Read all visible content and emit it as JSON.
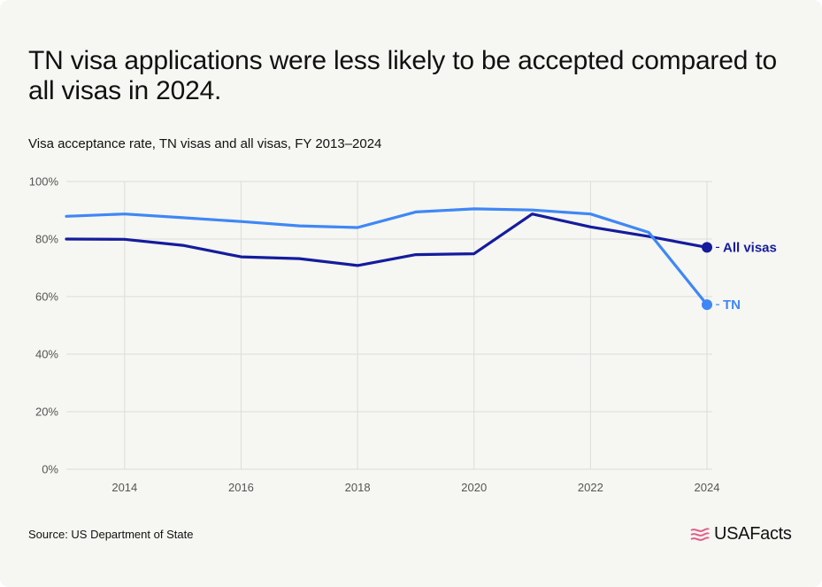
{
  "title": "TN visa applications were less likely to be accepted compared to all visas in 2024.",
  "subtitle": "Visa acceptance rate, TN visas and all visas, FY 2013–2024",
  "source": "Source: US Department of State",
  "brand": "USAFacts",
  "chart_data": {
    "type": "line",
    "x": [
      2013,
      2014,
      2015,
      2016,
      2017,
      2018,
      2019,
      2020,
      2021,
      2022,
      2023,
      2024
    ],
    "xticks": [
      2014,
      2016,
      2018,
      2020,
      2022,
      2024
    ],
    "xlim": [
      2013,
      2024
    ],
    "ylim": [
      0,
      100
    ],
    "yticks": [
      0,
      20,
      40,
      60,
      80,
      100
    ],
    "ytick_labels": [
      "0%",
      "20%",
      "40%",
      "60%",
      "80%",
      "100%"
    ],
    "grid": true,
    "series": [
      {
        "name": "All visas",
        "color": "#141c9c",
        "values": [
          80.0,
          79.9,
          77.8,
          73.8,
          73.2,
          70.8,
          74.6,
          74.9,
          88.7,
          84.2,
          80.9,
          77.1
        ]
      },
      {
        "name": "TN",
        "color": "#3f87f5",
        "values": [
          87.9,
          88.7,
          87.4,
          86.1,
          84.6,
          84.0,
          89.4,
          90.5,
          90.1,
          88.7,
          82.3,
          57.2
        ]
      }
    ]
  },
  "colors": {
    "background": "#f6f6f2",
    "grid": "#dcdcdc",
    "logo_accent": "#e0608a"
  },
  "icons": {
    "logo": "usafacts-flag-icon"
  }
}
